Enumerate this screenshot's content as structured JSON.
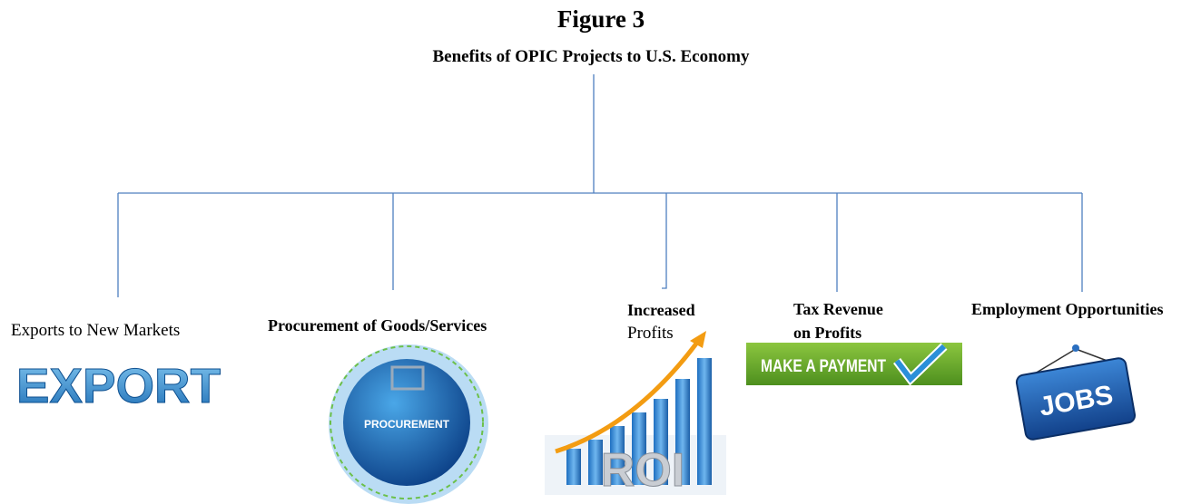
{
  "title": "Figure 3",
  "subtitle": "Benefits of OPIC Projects to U.S. Economy",
  "nodes": [
    {
      "label": [
        "Exports to  New Markets"
      ],
      "icon_text": "EXPORT"
    },
    {
      "label": [
        "Procurement of Goods/Services"
      ],
      "icon_text": "PROCUREMENT"
    },
    {
      "label": [
        "Increased",
        "Profits"
      ],
      "icon_text": "ROI"
    },
    {
      "label": [
        "Tax Revenue",
        "on Profits"
      ],
      "icon_text": "MAKE A PAYMENT"
    },
    {
      "label": [
        "Employment Opportunities"
      ],
      "icon_text": "JOBS"
    }
  ]
}
